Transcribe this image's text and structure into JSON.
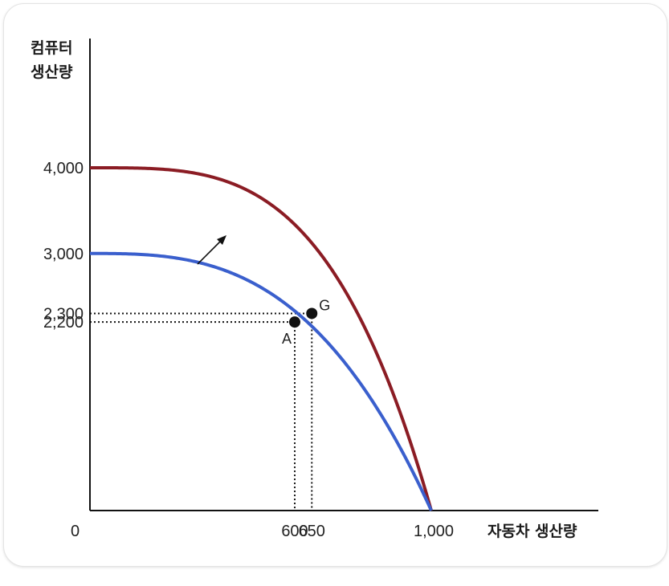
{
  "chart_data": {
    "type": "line",
    "xlabel": "자동차 생산량",
    "ylabel_line1": "컴퓨터",
    "ylabel_line2": "생산량",
    "origin_label": "0",
    "xlim": [
      0,
      1000
    ],
    "ylim": [
      0,
      4000
    ],
    "x_ticks": [
      {
        "value": 600,
        "label": "600"
      },
      {
        "value": 650,
        "label": "650"
      },
      {
        "value": 1000,
        "label": "1,000"
      }
    ],
    "y_ticks": [
      {
        "value": 4000,
        "label": "4,000"
      },
      {
        "value": 3000,
        "label": "3,000"
      },
      {
        "value": 2300,
        "label": "2,300"
      },
      {
        "value": 2200,
        "label": "2,200"
      }
    ],
    "series": [
      {
        "key": "outer",
        "color": "#8b1c24",
        "y_intercept": 4000,
        "x_intercept": 1000
      },
      {
        "key": "inner",
        "color": "#3a5fcd",
        "y_intercept": 3000,
        "x_intercept": 1000
      }
    ],
    "points": [
      {
        "label": "G",
        "x": 650,
        "y": 2300
      },
      {
        "label": "A",
        "x": 600,
        "y": 2200
      }
    ],
    "grid": false,
    "annotation": "arrow indicating outward shift of the curve"
  }
}
